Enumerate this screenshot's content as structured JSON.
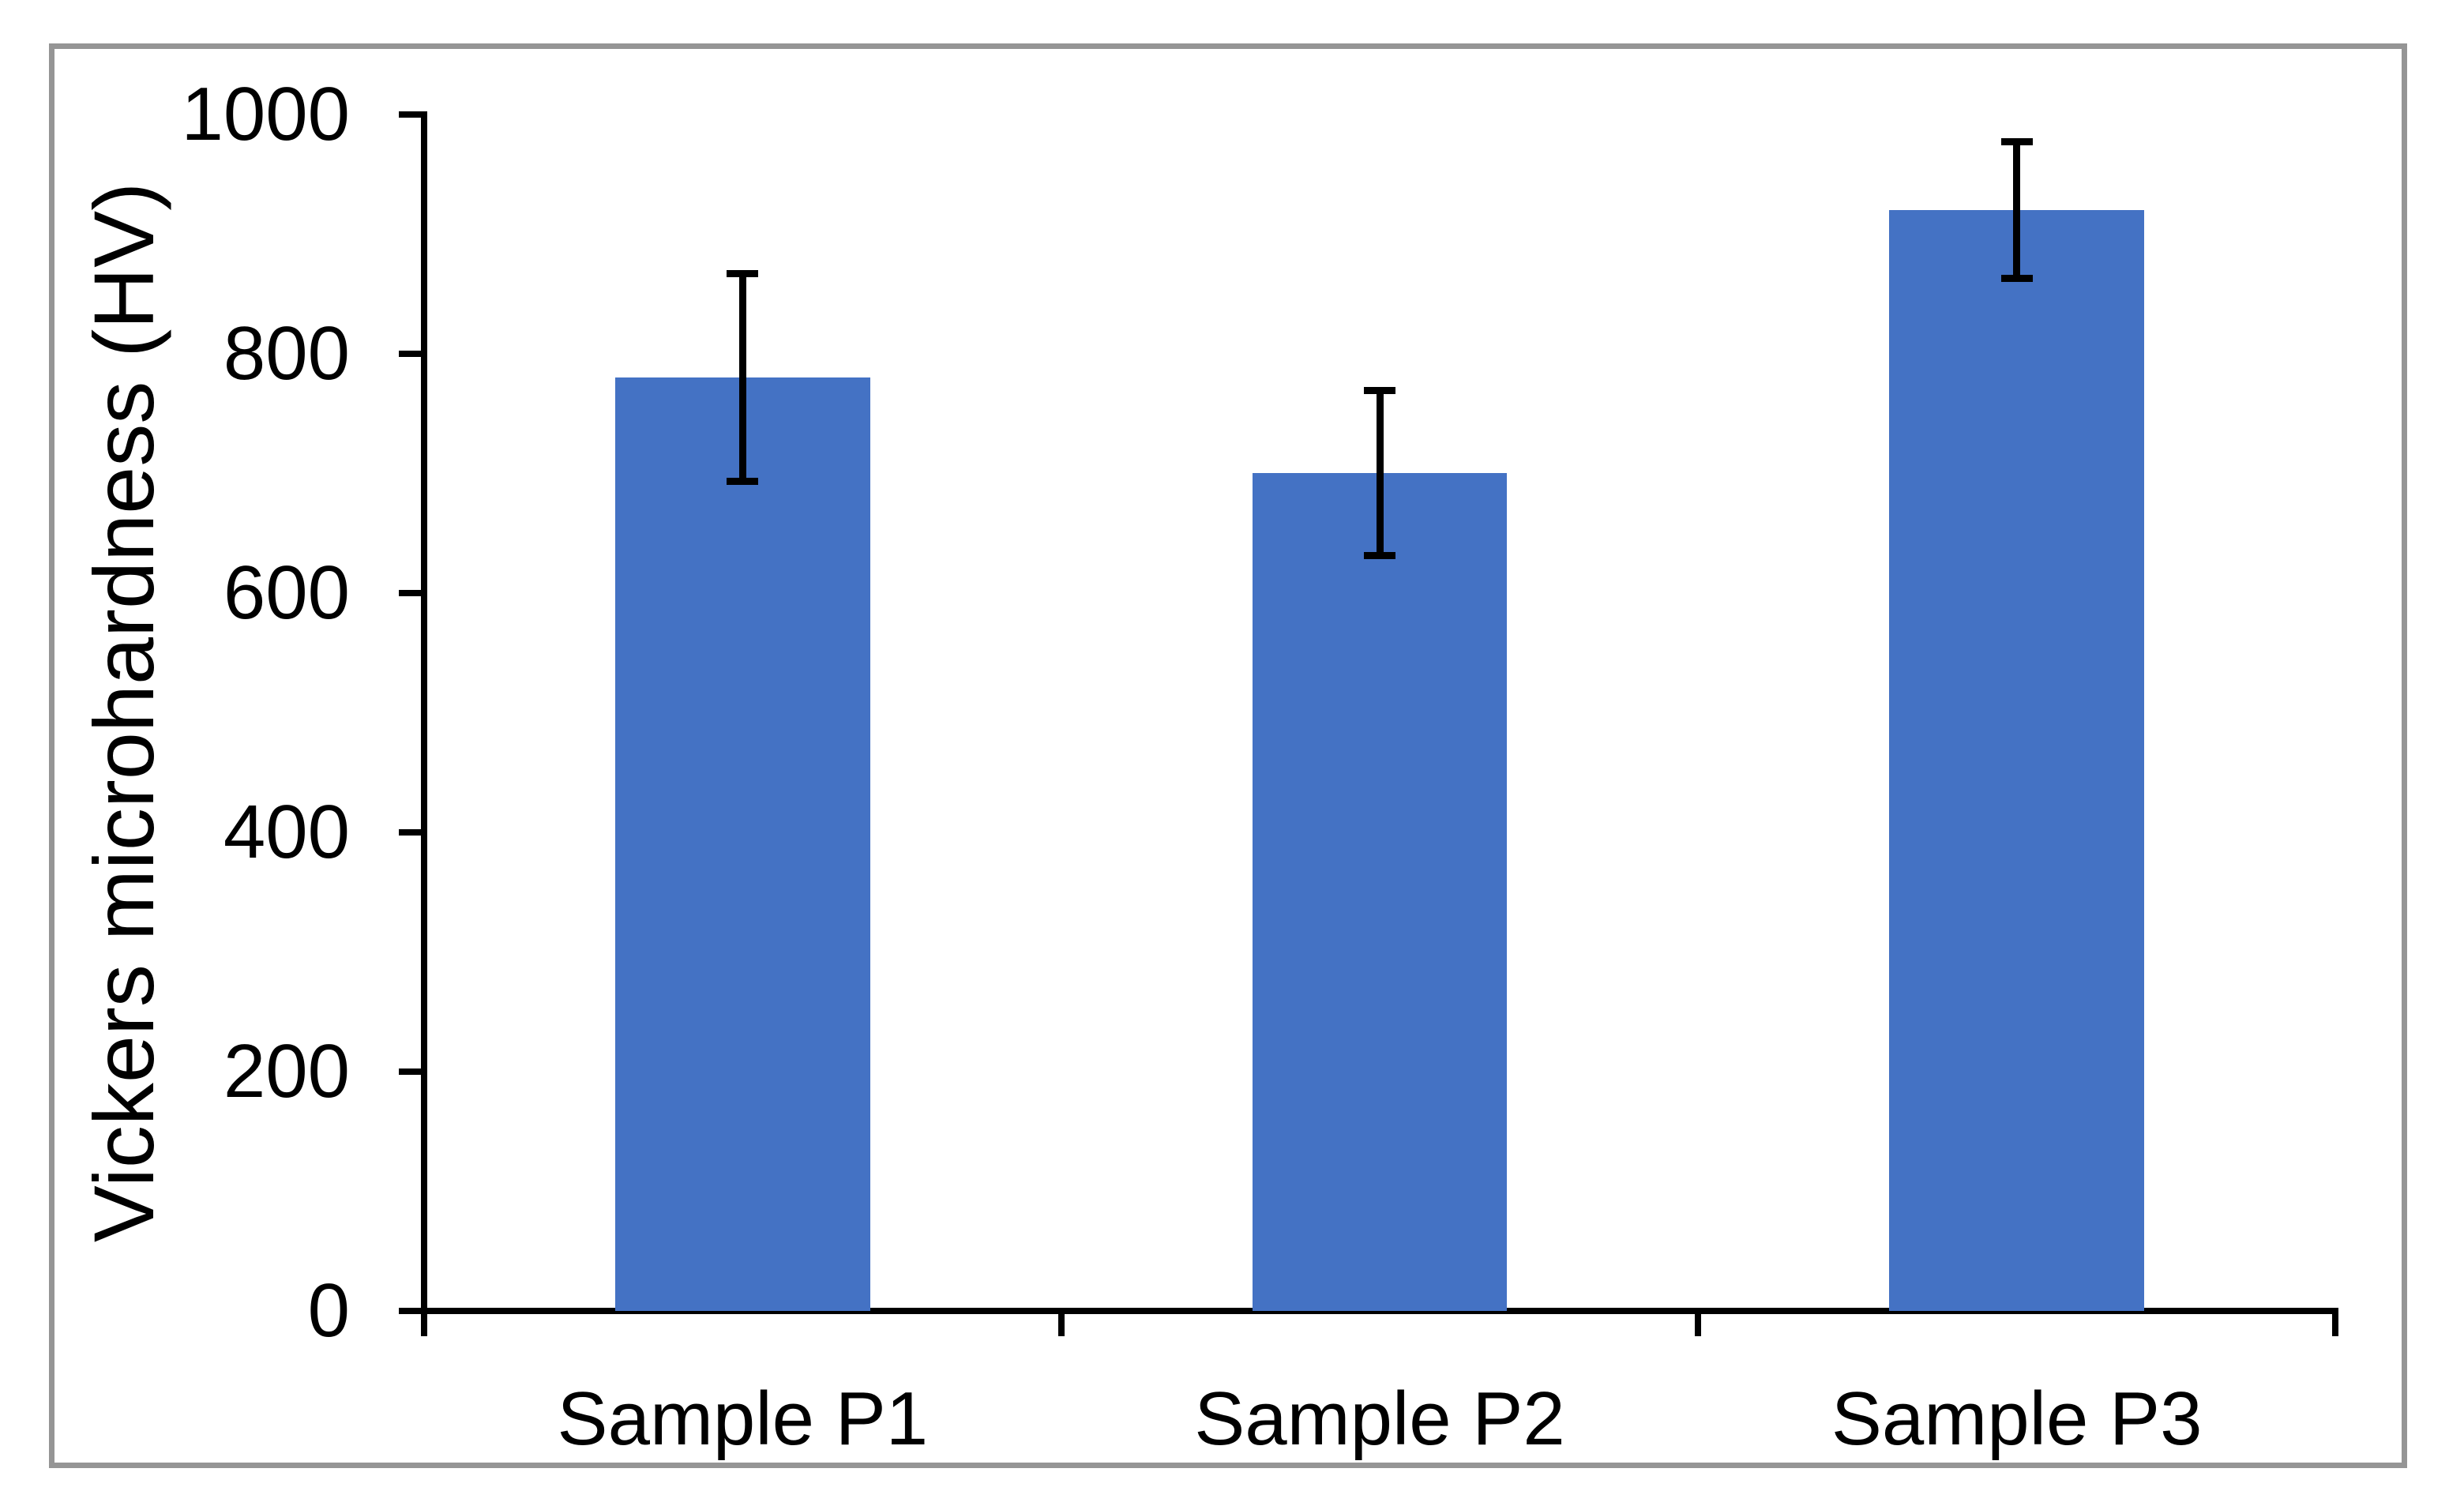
{
  "window": {
    "background_color": "#ffffff",
    "frame_color": "#959595"
  },
  "chart_data": {
    "type": "bar",
    "title": "",
    "categories": [
      "Sample P1",
      "Sample P2",
      "Sample P3"
    ],
    "values": [
      780,
      700,
      920
    ],
    "error_bars": [
      87,
      69,
      57
    ],
    "xlabel": "",
    "ylabel": "Vickers microhardness (HV)",
    "ylim": [
      0,
      1000
    ],
    "yticks": [
      0,
      200,
      400,
      600,
      800,
      1000
    ],
    "grid": false,
    "legend": false,
    "bar_color": "#4472C4",
    "error_bar_color": "#000000",
    "axis_color": "#000000"
  }
}
